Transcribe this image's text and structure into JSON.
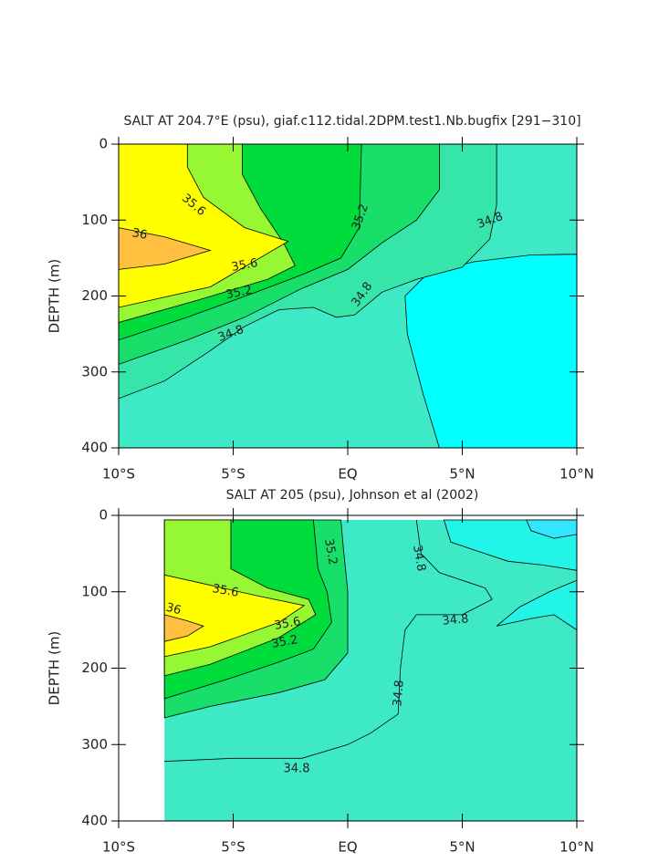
{
  "chart_data": [
    {
      "type": "contour",
      "title": "SALT AT 204.7°E (psu), giaf.c112.tidal.2DPM.test1.Nb.bugfix [291−310]",
      "y_label": "DEPTH (m)",
      "xlim": [
        -10,
        10
      ],
      "xticks": [
        {
          "value": -10,
          "label": "10°S"
        },
        {
          "value": -5,
          "label": "5°S"
        },
        {
          "value": 0,
          "label": "EQ"
        },
        {
          "value": 5,
          "label": "5°N"
        },
        {
          "value": 10,
          "label": "10°N"
        }
      ],
      "ylim": [
        400,
        0
      ],
      "yticks": [
        0,
        100,
        200,
        300,
        400
      ],
      "contour_labels": [
        35.6,
        36,
        35.6,
        35.2,
        34.8,
        34.8,
        35.2,
        34.8
      ],
      "colors": [
        "#3eeac6",
        "#00ffff",
        "#36e6a8",
        "#18df6a",
        "#00dc3c",
        "#96f832",
        "#ffff00",
        "#ffc040"
      ]
    },
    {
      "type": "contour",
      "title": "SALT AT 205 (psu), Johnson et al (2002)",
      "y_label": "DEPTH (m)",
      "xlim": [
        -10,
        10
      ],
      "xticks": [
        {
          "value": -10,
          "label": "10°S"
        },
        {
          "value": -5,
          "label": "5°S"
        },
        {
          "value": 0,
          "label": "EQ"
        },
        {
          "value": 5,
          "label": "5°N"
        },
        {
          "value": 10,
          "label": "10°N"
        }
      ],
      "ylim": [
        400,
        0
      ],
      "yticks": [
        0,
        100,
        200,
        300,
        400
      ],
      "contour_labels": [
        35.2,
        34.8,
        35.6,
        36,
        35.6,
        35.2,
        34.8,
        34.8,
        34.8
      ],
      "colors": [
        "#3eeac6",
        "#22f4e8",
        "#33e6ff",
        "#22f4e8",
        "#18df6a",
        "#00dc3c",
        "#96f832",
        "#ffff00",
        "#ffc040"
      ]
    }
  ]
}
